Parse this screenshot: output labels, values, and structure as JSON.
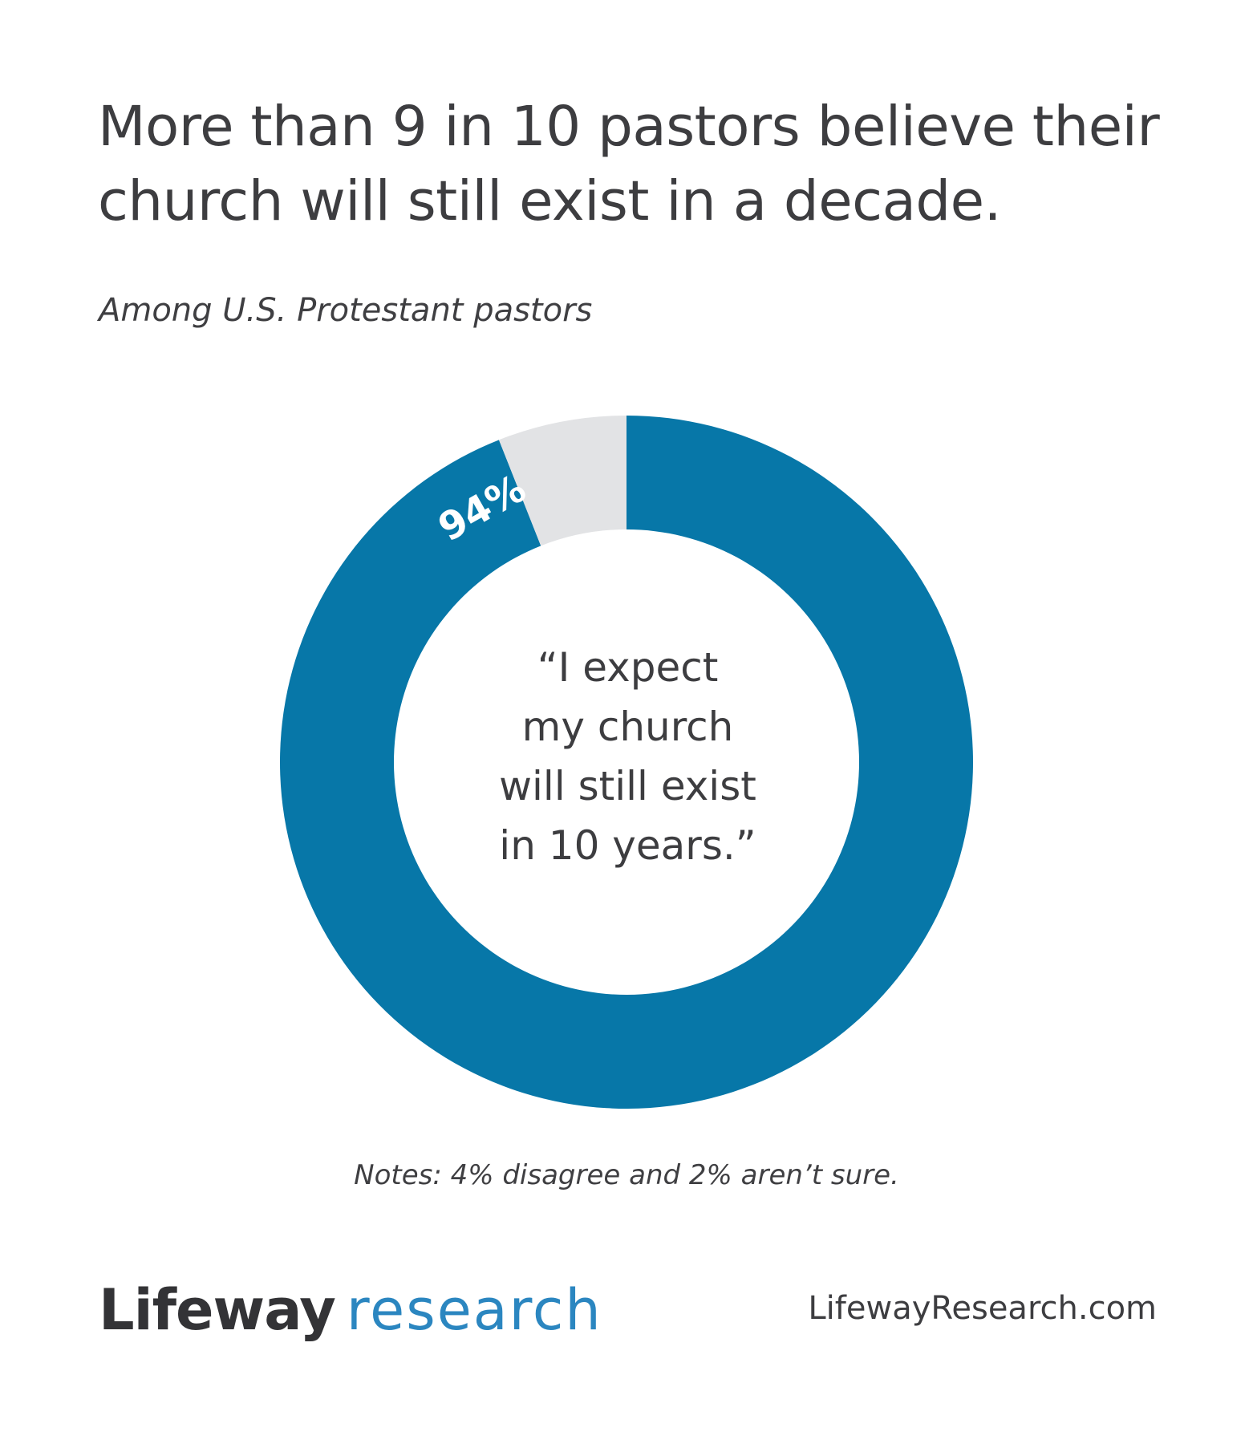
{
  "title": "More than 9 in 10 pastors believe their church will still exist in a decade.",
  "subtitle": "Among U.S. Protestant pastors",
  "center_quote_lines": [
    "“I expect",
    "my church",
    "will still exist",
    "in 10 years.”"
  ],
  "notes": "Notes: 4% disagree and 2% aren’t sure.",
  "logo": {
    "brand": "Lifeway",
    "suffix": "research"
  },
  "website": "LifewayResearch.com",
  "chart_data": {
    "type": "pie",
    "variant": "donut",
    "slices": [
      {
        "value": 94,
        "color": "#0777a8",
        "data_label": "94%"
      },
      {
        "value": 6,
        "color": "#e2e3e5"
      }
    ],
    "start": "top",
    "direction": "clockwise"
  }
}
